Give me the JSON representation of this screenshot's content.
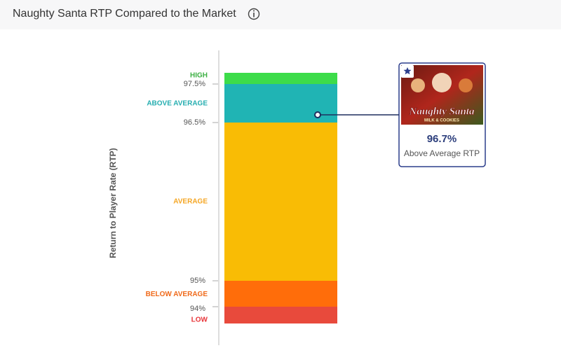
{
  "header": {
    "title": "Naughty Santa RTP Compared to the Market"
  },
  "chart_data": {
    "type": "rtp-band",
    "y_label": "Return to Player Rate (RTP)",
    "bands": [
      {
        "name": "HIGH",
        "color": "#3ddc4a",
        "label_color": "#3cb043"
      },
      {
        "name": "ABOVE AVERAGE",
        "color": "#20b4b4",
        "label_color": "#26aeb0"
      },
      {
        "name": "AVERAGE",
        "color": "#f9bc05",
        "label_color": "#f5a623"
      },
      {
        "name": "BELOW AVERAGE",
        "color": "#ff6d0a",
        "label_color": "#f06a1a"
      },
      {
        "name": "LOW",
        "color": "#e84a3c",
        "label_color": "#e8353a"
      }
    ],
    "yticks": [
      {
        "value": 97.5,
        "label": "97.5%"
      },
      {
        "value": 96.5,
        "label": "96.5%"
      },
      {
        "value": 95,
        "label": "95%"
      },
      {
        "value": 94,
        "label": "94%"
      }
    ],
    "marker": {
      "value": 96.7,
      "label": "96.7%",
      "caption": "Above Average RTP",
      "color": "#1f2f5e",
      "image_title": "Naughty Santa",
      "image_subtitle": "MILK & COOKIES"
    }
  }
}
